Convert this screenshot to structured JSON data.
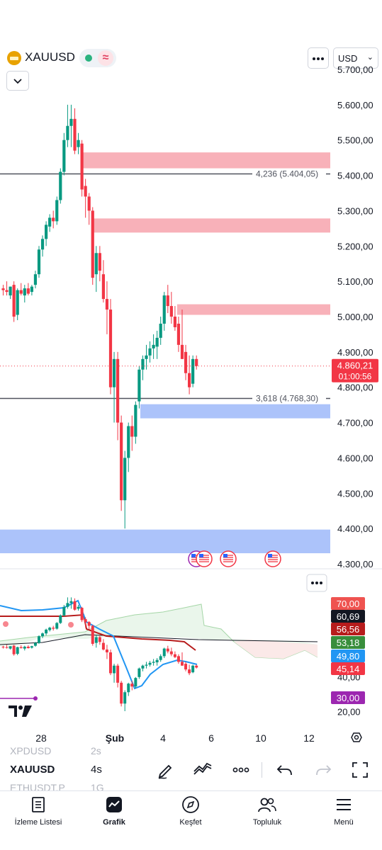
{
  "header": {
    "symbol": "XAUUSD",
    "currency": "USD",
    "icons": [
      "gold-bar-icon",
      "market-open-dot-icon",
      "delayed-data-icon",
      "more-options-icon",
      "chevron-down-icon"
    ]
  },
  "chart_data": [
    {
      "type": "candlestick",
      "title": "XAUUSD",
      "interval": "4s",
      "x_ticks": [
        "28",
        "Şub",
        "4",
        "6",
        "10",
        "12"
      ],
      "y_ticks": [
        "5.700,00",
        "5.600,00",
        "5.500,00",
        "5.400,00",
        "5.300,00",
        "5.200,00",
        "5.100,00",
        "5.000,00",
        "4.900,00",
        "4.800,00",
        "4.700,00",
        "4.600,00",
        "4.500,00",
        "4.400,00",
        "4.300,00"
      ],
      "ylim": [
        4300,
        5700
      ],
      "last_price": "4.860,21",
      "countdown": "01:00:56",
      "levels": [
        {
          "label": "4,236 (5.404,05)",
          "price": 5404.05
        },
        {
          "label": "3,618 (4.768,30)",
          "price": 4768.3
        }
      ],
      "zones": [
        {
          "kind": "supply",
          "from": 5420,
          "to": 5465
        },
        {
          "kind": "supply",
          "from": 5238,
          "to": 5278
        },
        {
          "kind": "supply",
          "from": 5005,
          "to": 5035
        },
        {
          "kind": "demand",
          "from": 4712,
          "to": 4752
        },
        {
          "kind": "demand",
          "from": 4330,
          "to": 4397
        }
      ],
      "candles": [
        [
          5080,
          5090,
          5060,
          5075
        ],
        [
          5075,
          5100,
          5060,
          5070
        ],
        [
          5060,
          5085,
          5050,
          5085
        ],
        [
          5090,
          5100,
          4985,
          5000
        ],
        [
          5005,
          5080,
          4990,
          5075
        ],
        [
          5075,
          5095,
          5060,
          5065
        ],
        [
          5060,
          5090,
          5040,
          5080
        ],
        [
          5080,
          5095,
          5060,
          5065
        ],
        [
          5070,
          5090,
          5060,
          5085
        ],
        [
          5090,
          5130,
          5080,
          5120
        ],
        [
          5120,
          5200,
          5110,
          5190
        ],
        [
          5190,
          5230,
          5170,
          5220
        ],
        [
          5220,
          5270,
          5200,
          5260
        ],
        [
          5255,
          5290,
          5240,
          5280
        ],
        [
          5280,
          5300,
          5250,
          5270
        ],
        [
          5270,
          5340,
          5260,
          5330
        ],
        [
          5330,
          5420,
          5320,
          5410
        ],
        [
          5410,
          5520,
          5400,
          5500
        ],
        [
          5500,
          5600,
          5480,
          5540
        ],
        [
          5540,
          5600,
          5480,
          5560
        ],
        [
          5560,
          5590,
          5460,
          5470
        ],
        [
          5480,
          5520,
          5460,
          5500
        ],
        [
          5490,
          5500,
          5340,
          5360
        ],
        [
          5370,
          5390,
          5280,
          5340
        ],
        [
          5340,
          5350,
          5260,
          5300
        ],
        [
          5300,
          5310,
          5090,
          5110
        ],
        [
          5120,
          5200,
          5070,
          5180
        ],
        [
          5180,
          5200,
          5100,
          5130
        ],
        [
          5120,
          5160,
          5040,
          5050
        ],
        [
          5050,
          5100,
          4950,
          5020
        ],
        [
          5020,
          5050,
          4780,
          4800
        ],
        [
          4800,
          4900,
          4700,
          4880
        ],
        [
          4880,
          4900,
          4650,
          4700
        ],
        [
          4700,
          4720,
          4450,
          4480
        ],
        [
          4480,
          4620,
          4400,
          4600
        ],
        [
          4600,
          4700,
          4560,
          4690
        ],
        [
          4690,
          4720,
          4620,
          4660
        ],
        [
          4660,
          4760,
          4640,
          4750
        ],
        [
          4760,
          4860,
          4740,
          4850
        ],
        [
          4850,
          4890,
          4820,
          4880
        ],
        [
          4880,
          4920,
          4850,
          4890
        ],
        [
          4890,
          4930,
          4870,
          4910
        ],
        [
          4910,
          4950,
          4880,
          4920
        ],
        [
          4915,
          4960,
          4880,
          4940
        ],
        [
          4940,
          5000,
          4920,
          4980
        ],
        [
          4980,
          5070,
          4960,
          5060
        ],
        [
          5060,
          5090,
          5010,
          5030
        ],
        [
          5030,
          5070,
          4980,
          5000
        ],
        [
          5000,
          5030,
          4960,
          4970
        ],
        [
          4980,
          5000,
          4900,
          4920
        ],
        [
          4920,
          5020,
          4880,
          4880
        ],
        [
          4900,
          4920,
          4820,
          4840
        ],
        [
          4840,
          4890,
          4780,
          4800
        ],
        [
          4810,
          4890,
          4800,
          4880
        ],
        [
          4880,
          4890,
          4850,
          4860
        ]
      ]
    },
    {
      "type": "oscillator",
      "y_ticks": [
        "40,00",
        "20,00"
      ],
      "ylim": [
        17,
        88
      ],
      "value_badges": [
        {
          "text": "70,00",
          "color": "#ef5350"
        },
        {
          "text": "60,69",
          "color": "#131722"
        },
        {
          "text": "56,56",
          "color": "#b71c1c"
        },
        {
          "text": "53,18",
          "color": "#388e3c"
        },
        {
          "text": "49,80",
          "color": "#2196f3"
        },
        {
          "text": "45,14",
          "color": "#f23645"
        },
        {
          "text": "30,00",
          "color": "#9c27b0"
        }
      ]
    }
  ],
  "toolbar": {
    "symbol": "XAUUSD",
    "interval": "4s",
    "watch_prev": "XPDUSD",
    "watch_prev_int": "2s",
    "watch_next": "ETHUSDT.P",
    "watch_next_int": "1G",
    "icons": [
      "draw-icon",
      "indicators-icon",
      "more-icon",
      "undo-icon",
      "redo-icon",
      "fullscreen-icon"
    ]
  },
  "nav": {
    "items": [
      {
        "label": "İzleme Listesi",
        "icon": "watchlist-icon"
      },
      {
        "label": "Grafik",
        "icon": "chart-icon"
      },
      {
        "label": "Keşfet",
        "icon": "compass-icon"
      },
      {
        "label": "Topluluk",
        "icon": "community-icon"
      },
      {
        "label": "Menü",
        "icon": "menu-icon"
      }
    ]
  },
  "colors": {
    "up": "#089981",
    "down": "#f23645",
    "supply_zone": "#f7a3ad",
    "demand_zone": "#9db9f9",
    "accent": "#2962ff"
  }
}
